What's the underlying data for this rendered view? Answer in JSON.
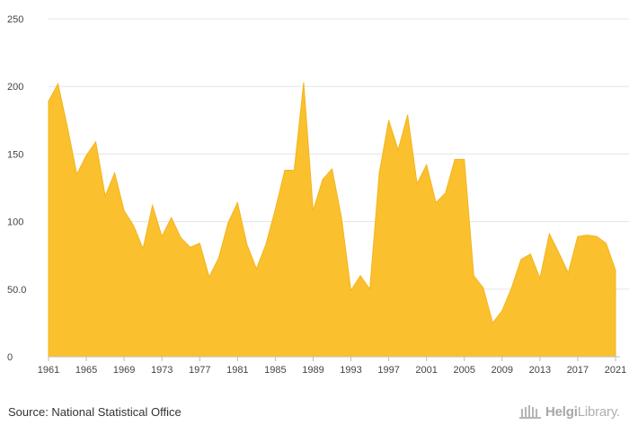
{
  "chart_data": {
    "type": "area",
    "color": "#FBC02D",
    "grid": "horizontal",
    "ylim": [
      0,
      250
    ],
    "y_ticks": [
      "0",
      "50.0",
      "100",
      "150",
      "200",
      "250"
    ],
    "x_ticks": [
      "1961",
      "1965",
      "1969",
      "1973",
      "1977",
      "1981",
      "1985",
      "1989",
      "1993",
      "1997",
      "2001",
      "2005",
      "2009",
      "2013",
      "2017",
      "2021"
    ],
    "x": [
      1961,
      1962,
      1963,
      1964,
      1965,
      1966,
      1967,
      1968,
      1969,
      1970,
      1971,
      1972,
      1973,
      1974,
      1975,
      1976,
      1977,
      1978,
      1979,
      1980,
      1981,
      1982,
      1983,
      1984,
      1985,
      1986,
      1987,
      1988,
      1989,
      1990,
      1991,
      1992,
      1993,
      1994,
      1995,
      1996,
      1997,
      1998,
      1999,
      2000,
      2001,
      2002,
      2003,
      2004,
      2005,
      2006,
      2007,
      2008,
      2009,
      2010,
      2011,
      2012,
      2013,
      2014,
      2015,
      2016,
      2017,
      2018,
      2019,
      2020,
      2021
    ],
    "values": [
      189,
      202,
      170,
      135,
      149,
      159,
      119,
      136,
      108,
      97,
      80,
      112,
      89,
      103,
      88,
      81,
      84,
      59,
      73,
      99,
      114,
      83,
      65,
      83,
      109,
      138,
      138,
      203,
      108,
      131,
      139,
      103,
      49,
      60,
      50,
      136,
      175,
      153,
      179,
      128,
      142,
      114,
      121,
      146,
      146,
      60,
      51,
      25,
      34,
      51,
      72,
      76,
      58,
      91,
      77,
      62,
      89,
      90,
      89,
      84,
      64
    ]
  },
  "source": {
    "text": "Source: National Statistical Office"
  },
  "logo": {
    "name": "HelgiLibrary.",
    "part1": "Helgi",
    "part2": "Library."
  }
}
